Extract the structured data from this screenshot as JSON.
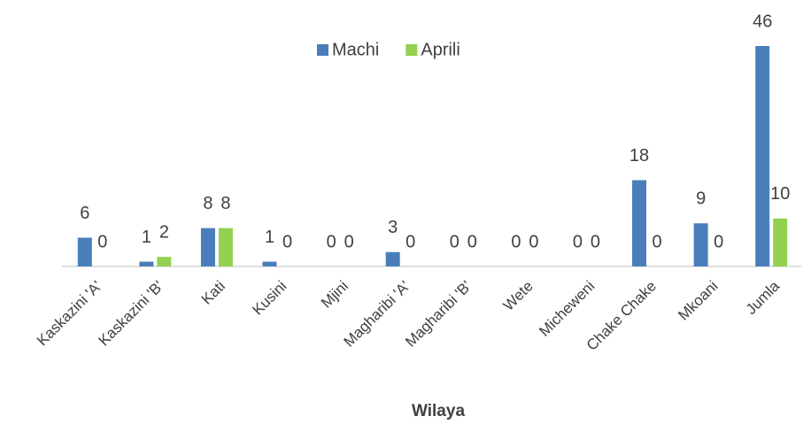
{
  "chart_data": {
    "type": "bar",
    "x_label": "Wilaya",
    "categories": [
      "Kaskazini 'A'",
      "Kaskazini 'B'",
      "Kati",
      "Kusini",
      "Mjini",
      "Magharibi 'A'",
      "Magharibi 'B'",
      "Wete",
      "Micheweni",
      "Chake Chake",
      "Mkoani",
      "Jumla"
    ],
    "series": [
      {
        "name": "Machi",
        "color": "#4a7ebb",
        "values": [
          6,
          1,
          8,
          1,
          0,
          3,
          0,
          0,
          0,
          18,
          9,
          46
        ]
      },
      {
        "name": "Aprili",
        "color": "#92d050",
        "values": [
          0,
          2,
          8,
          0,
          0,
          0,
          0,
          0,
          0,
          0,
          0,
          10
        ]
      }
    ],
    "legend": "top"
  }
}
